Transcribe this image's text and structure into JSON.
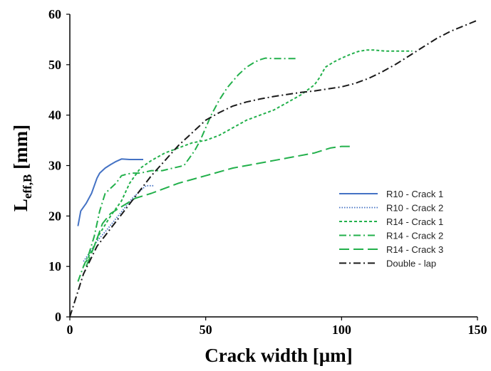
{
  "chart_data": {
    "type": "line",
    "title": "",
    "xlabel": "Crack width [µm]",
    "ylabel": {
      "main": "L",
      "sub": "eff,B",
      "unit": " [mm]"
    },
    "xlim": [
      0,
      150
    ],
    "ylim": [
      0,
      60
    ],
    "xticks": [
      0,
      50,
      100,
      150
    ],
    "yticks": [
      0,
      10,
      20,
      30,
      40,
      50,
      60
    ],
    "grid": false,
    "legend_position": "lower-right",
    "series": [
      {
        "name": "R10 - Crack 1",
        "color": "#4472C4",
        "dash": "solid",
        "x": [
          3,
          4,
          6,
          8,
          9,
          10,
          11,
          13,
          15,
          17,
          19,
          22,
          24,
          27
        ],
        "y": [
          18,
          21,
          22.5,
          24.5,
          26,
          27.5,
          28.5,
          29.5,
          30.2,
          30.8,
          31.3,
          31.2,
          31.2,
          31.2
        ]
      },
      {
        "name": "R10 - Crack 2",
        "color": "#4472C4",
        "dash": "dotted",
        "x": [
          5,
          7,
          10,
          14,
          17,
          20,
          23,
          26,
          28,
          31
        ],
        "y": [
          11,
          12.5,
          15,
          17.5,
          19.5,
          21.5,
          23.5,
          25,
          26,
          26
        ]
      },
      {
        "name": "R14 - Crack 1",
        "color": "#22B04B",
        "dash": "short-dash",
        "x": [
          5,
          8,
          11,
          15,
          19,
          22,
          26,
          30,
          35,
          40,
          45,
          50,
          55,
          60,
          65,
          70,
          75,
          80,
          85,
          90,
          92,
          94,
          97,
          100,
          103,
          106,
          109,
          112,
          116,
          120,
          126
        ],
        "y": [
          10,
          13,
          16.5,
          20,
          23,
          26.5,
          29.5,
          31,
          32.5,
          33.5,
          34.5,
          35,
          36,
          37.5,
          39,
          40,
          41,
          42.5,
          44,
          46,
          47.5,
          49.5,
          50.5,
          51.3,
          52,
          52.6,
          52.9,
          52.9,
          52.7,
          52.7,
          52.7
        ]
      },
      {
        "name": "R14 - Crack 2",
        "color": "#22B04B",
        "dash": "dash-dot",
        "x": [
          3,
          5,
          7,
          9,
          11,
          13,
          15,
          17,
          19,
          21,
          23,
          26,
          30,
          34,
          38,
          42,
          44,
          46,
          48,
          50,
          52,
          55,
          58,
          62,
          65,
          68,
          70,
          72,
          75,
          78,
          81,
          84
        ],
        "y": [
          7,
          10,
          12.5,
          16,
          21,
          24.5,
          25.5,
          26.5,
          28,
          28.3,
          28.5,
          28.5,
          29,
          29,
          29.5,
          30,
          31.5,
          33,
          35,
          37.5,
          40,
          43,
          45.5,
          48,
          49.5,
          50.5,
          51,
          51.3,
          51.2,
          51.2,
          51.2,
          51.2
        ]
      },
      {
        "name": "R14 - Crack 3",
        "color": "#22B04B",
        "dash": "long-dash",
        "x": [
          6,
          9,
          12,
          15,
          18,
          21,
          24,
          30,
          40,
          50,
          60,
          70,
          80,
          90,
          96,
          100,
          104
        ],
        "y": [
          10,
          14,
          18.5,
          20.5,
          21.5,
          22.5,
          23.5,
          24.5,
          26.5,
          28,
          29.5,
          30.5,
          31.5,
          32.5,
          33.5,
          33.8,
          33.8
        ]
      },
      {
        "name": "Double - lap",
        "color": "#1A1A1A",
        "dash": "dash-dot",
        "x": [
          0,
          5,
          10,
          15,
          20,
          25,
          30,
          35,
          40,
          45,
          50,
          55,
          60,
          65,
          70,
          75,
          80,
          85,
          90,
          95,
          100,
          105,
          110,
          115,
          120,
          125,
          130,
          135,
          140,
          145,
          150
        ],
        "y": [
          0,
          8.5,
          14,
          17.5,
          21,
          24.5,
          28,
          31,
          34,
          36.5,
          39,
          40.5,
          41.8,
          42.6,
          43.2,
          43.7,
          44.1,
          44.5,
          44.8,
          45.2,
          45.6,
          46.3,
          47.3,
          48.6,
          50.1,
          51.8,
          53.5,
          55.2,
          56.6,
          57.7,
          58.8
        ]
      }
    ]
  }
}
